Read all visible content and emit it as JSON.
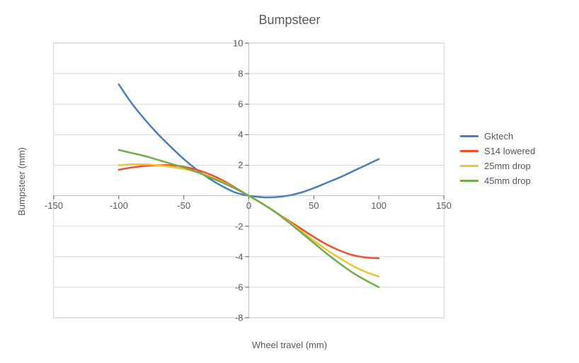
{
  "chart": {
    "type": "line",
    "title": "Bumpsteer",
    "title_fontsize": 18,
    "xlabel": "Wheel travel (mm)",
    "ylabel": "Bumpsteer (mm)",
    "label_fontsize": 13,
    "tick_fontsize": 13,
    "background_color": "#ffffff",
    "plot_border_color": "#d9d9d9",
    "grid_color": "#d9d9d9",
    "axis_zero_color": "#bfbfbf",
    "tick_color": "#595959",
    "xlim": [
      -150,
      150
    ],
    "ylim": [
      -8,
      10
    ],
    "xticks": [
      -150,
      -100,
      -50,
      0,
      50,
      100,
      150
    ],
    "yticks": [
      -8,
      -6,
      -4,
      -2,
      0,
      2,
      4,
      6,
      8,
      10
    ],
    "line_width": 2.5,
    "legend_position": "right",
    "series": [
      {
        "name": "Gktech",
        "color": "#4a7ebb",
        "x": [
          -100,
          -90,
          -80,
          -70,
          -60,
          -50,
          -40,
          -30,
          -20,
          -10,
          0,
          10,
          20,
          30,
          40,
          50,
          60,
          70,
          80,
          90,
          100
        ],
        "y": [
          7.3,
          6.05,
          5.0,
          4.05,
          3.2,
          2.4,
          1.7,
          1.1,
          0.6,
          0.2,
          0.0,
          -0.1,
          -0.1,
          0.0,
          0.2,
          0.5,
          0.85,
          1.2,
          1.6,
          2.0,
          2.4
        ]
      },
      {
        "name": "S14 lowered",
        "color": "#f04e2d",
        "x": [
          -100,
          -90,
          -80,
          -70,
          -60,
          -50,
          -40,
          -30,
          -20,
          -10,
          0,
          10,
          20,
          30,
          40,
          50,
          60,
          70,
          80,
          90,
          100
        ],
        "y": [
          1.7,
          1.85,
          1.95,
          2.0,
          2.0,
          1.9,
          1.7,
          1.4,
          1.0,
          0.5,
          0.0,
          -0.5,
          -1.05,
          -1.6,
          -2.15,
          -2.7,
          -3.2,
          -3.6,
          -3.9,
          -4.05,
          -4.1
        ]
      },
      {
        "name": "25mm drop",
        "color": "#f1c232",
        "x": [
          -100,
          -90,
          -80,
          -70,
          -60,
          -50,
          -40,
          -30,
          -20,
          -10,
          0,
          10,
          20,
          30,
          40,
          50,
          60,
          70,
          80,
          90,
          100
        ],
        "y": [
          2.0,
          2.05,
          2.05,
          2.0,
          1.9,
          1.75,
          1.55,
          1.25,
          0.9,
          0.45,
          0.0,
          -0.5,
          -1.05,
          -1.65,
          -2.3,
          -2.95,
          -3.55,
          -4.1,
          -4.6,
          -5.0,
          -5.3
        ]
      },
      {
        "name": "45mm drop",
        "color": "#70ad47",
        "x": [
          -100,
          -90,
          -80,
          -70,
          -60,
          -50,
          -40,
          -30,
          -20,
          -10,
          0,
          10,
          20,
          30,
          40,
          50,
          60,
          70,
          80,
          90,
          100
        ],
        "y": [
          3.0,
          2.8,
          2.6,
          2.35,
          2.1,
          1.85,
          1.55,
          1.2,
          0.85,
          0.45,
          0.0,
          -0.5,
          -1.05,
          -1.7,
          -2.4,
          -3.1,
          -3.8,
          -4.45,
          -5.05,
          -5.55,
          -6.0
        ]
      }
    ]
  }
}
